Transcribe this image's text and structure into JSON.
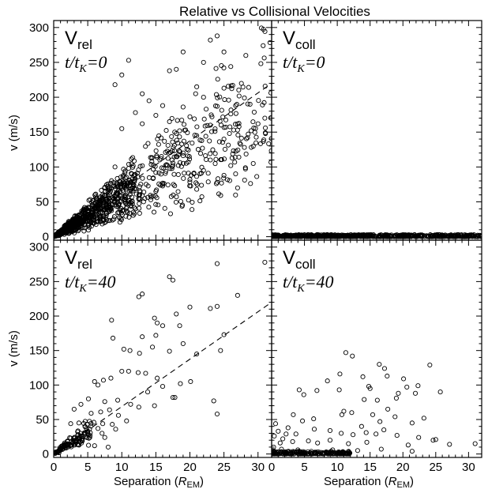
{
  "chart_data": {
    "type": "scatter",
    "title": "Relative vs Collisional Velocities",
    "xlabel": "Separation (",
    "xlabel_symbol": "R",
    "xlabel_subscript": "EM",
    "xlabel_close": ")",
    "ylabel": "v (m/s)",
    "xlim": [
      0,
      32
    ],
    "ylim": [
      -5,
      310
    ],
    "x_ticks": [
      "0",
      "5",
      "10",
      "15",
      "20",
      "25",
      "30"
    ],
    "y_ticks": [
      "0",
      "50",
      "100",
      "150",
      "200",
      "250",
      "300"
    ],
    "grid": false,
    "marker": "open-circle",
    "reference_line": {
      "style": "dashed",
      "x": [
        0,
        32
      ],
      "y": [
        0,
        220
      ]
    },
    "panels": [
      {
        "id": "top-left",
        "label_main": "V",
        "label_sub": "rel",
        "time_t": "t/t",
        "time_sub": "K",
        "time_value": "=0",
        "series": {
          "name": "",
          "points": [
            [
              11,
              253
            ],
            [
              23,
              282
            ],
            [
              24,
              288
            ],
            [
              25,
              265
            ],
            [
              19,
              265
            ],
            [
              22,
              250
            ],
            [
              26,
              244
            ],
            [
              10,
              232
            ],
            [
              17,
              238
            ],
            [
              18,
              240
            ],
            [
              9,
              218
            ],
            [
              21,
              215
            ],
            [
              13,
              205
            ],
            [
              25,
              213
            ],
            [
              16,
              188
            ],
            [
              22,
              200
            ],
            [
              28,
              199
            ],
            [
              14,
              195
            ],
            [
              19,
              186
            ],
            [
              24,
              187
            ],
            [
              12,
              178
            ],
            [
              15,
              174
            ],
            [
              20,
              172
            ],
            [
              26,
              176
            ],
            [
              31,
              170
            ],
            [
              13,
              162
            ],
            [
              17,
              165
            ],
            [
              23,
              160
            ],
            [
              27,
              153
            ],
            [
              29,
              152
            ],
            [
              18,
              148
            ],
            [
              21,
              145
            ],
            [
              25,
              140
            ],
            [
              28,
              128
            ],
            [
              10,
              155
            ],
            [
              30,
              162
            ],
            [
              22,
              95
            ],
            [
              25,
              88
            ],
            [
              24,
              78
            ],
            [
              27,
              70
            ],
            [
              26,
              102
            ],
            [
              20,
              82
            ],
            [
              21,
              68
            ],
            [
              11,
              98
            ],
            [
              9,
              100
            ],
            [
              23,
              110
            ],
            [
              19,
              120
            ],
            [
              16,
              75
            ],
            [
              15,
              65
            ],
            [
              12,
              40
            ]
          ]
        },
        "cloud": {
          "count": 1650,
          "xmax": 32,
          "slope": 6.0
        }
      },
      {
        "id": "top-right",
        "label_main": "V",
        "label_sub": "coll",
        "time_t": "t/t",
        "time_sub": "K",
        "time_value": "=0",
        "series": {
          "name": "",
          "points": [
            [
              4,
              2
            ],
            [
              7,
              3
            ],
            [
              11,
              2
            ],
            [
              14,
              3
            ],
            [
              18,
              2
            ],
            [
              20,
              3
            ],
            [
              23,
              2
            ],
            [
              25,
              2
            ]
          ]
        },
        "cloud": {
          "count": 650,
          "xmax": 32,
          "vmax": 3
        }
      },
      {
        "id": "bottom-left",
        "label_main": "V",
        "label_sub": "rel",
        "time_t": "t/t",
        "time_sub": "K",
        "time_value": "=40",
        "series": {
          "name": "",
          "points": [
            [
              31,
              278
            ],
            [
              24,
              276
            ],
            [
              17,
              257
            ],
            [
              17.5,
              252
            ],
            [
              13,
              232
            ],
            [
              12.5,
              228
            ],
            [
              27,
              230
            ],
            [
              8.5,
              194
            ],
            [
              14.8,
              197
            ],
            [
              15.2,
              190
            ],
            [
              18,
              203
            ],
            [
              16,
              186
            ],
            [
              18.5,
              186
            ],
            [
              20,
              213
            ],
            [
              23,
              211
            ],
            [
              24,
              214
            ],
            [
              25,
              173
            ],
            [
              13,
              170
            ],
            [
              15,
              172
            ],
            [
              8.7,
              168
            ],
            [
              10.3,
              152
            ],
            [
              11.2,
              150
            ],
            [
              12.6,
              146
            ],
            [
              14.5,
              155
            ],
            [
              17,
              149
            ],
            [
              19,
              160
            ],
            [
              21,
              145
            ],
            [
              24.5,
              150
            ],
            [
              6,
              105
            ],
            [
              6.5,
              100
            ],
            [
              7.3,
              107
            ],
            [
              8.4,
              110
            ],
            [
              10,
              120
            ],
            [
              11,
              120
            ],
            [
              12.4,
              118
            ],
            [
              13.5,
              117
            ],
            [
              15.2,
              110
            ],
            [
              16,
              98
            ],
            [
              18.6,
              102
            ],
            [
              20.1,
              105
            ],
            [
              5.1,
              80
            ],
            [
              7.5,
              76
            ],
            [
              9.4,
              78
            ],
            [
              11.3,
              72
            ],
            [
              13.8,
              90
            ],
            [
              17.5,
              82
            ],
            [
              4,
              72
            ],
            [
              3,
              65
            ],
            [
              5.5,
              59
            ],
            [
              6.9,
              61
            ],
            [
              8.2,
              64
            ],
            [
              9.5,
              56
            ],
            [
              10.7,
              48
            ],
            [
              12.5,
              68
            ],
            [
              14.8,
              70
            ],
            [
              17.8,
              82
            ],
            [
              2.5,
              44
            ],
            [
              3.7,
              45
            ],
            [
              4.8,
              37
            ],
            [
              5.9,
              46
            ],
            [
              6.5,
              37
            ],
            [
              7.2,
              44
            ],
            [
              8.6,
              43
            ],
            [
              9.1,
              36
            ],
            [
              23.5,
              77
            ],
            [
              24,
              58
            ],
            [
              2.5,
              23
            ],
            [
              3.6,
              28
            ],
            [
              4.2,
              19
            ],
            [
              5.3,
              24
            ],
            [
              7.1,
              30
            ],
            [
              7.5,
              24
            ],
            [
              6,
              12
            ],
            [
              1.6,
              16
            ],
            [
              0.6,
              3
            ],
            [
              8,
              10
            ]
          ]
        },
        "cloud": {
          "count": 110,
          "xmax": 5.5,
          "slope": 6.5
        }
      },
      {
        "id": "bottom-right",
        "label_main": "V",
        "label_sub": "coll",
        "time_t": "t/t",
        "time_sub": "K",
        "time_value": "=40",
        "series": {
          "name": "",
          "points": [
            [
              11.3,
              147
            ],
            [
              12.3,
              142
            ],
            [
              16.4,
              130
            ],
            [
              17.6,
              113
            ],
            [
              17.2,
              124
            ],
            [
              24.1,
              129
            ],
            [
              10.4,
              116
            ],
            [
              13.9,
              112
            ],
            [
              20.1,
              109
            ],
            [
              20.6,
              97
            ],
            [
              14.8,
              98
            ],
            [
              15,
              95
            ],
            [
              8.5,
              106
            ],
            [
              22.3,
              99
            ],
            [
              4.2,
              93
            ],
            [
              4.9,
              86
            ],
            [
              6.9,
              92
            ],
            [
              10.3,
              93
            ],
            [
              14.1,
              79
            ],
            [
              16.1,
              78
            ],
            [
              19.3,
              88
            ],
            [
              21.9,
              88
            ],
            [
              25.7,
              90
            ],
            [
              19,
              81
            ],
            [
              17.7,
              65
            ],
            [
              15.4,
              57
            ],
            [
              11,
              62
            ],
            [
              2.5,
              38
            ],
            [
              3.3,
              57
            ],
            [
              4.7,
              48
            ],
            [
              6.4,
              51
            ],
            [
              10.7,
              57
            ],
            [
              12.2,
              60
            ],
            [
              13.7,
              40
            ],
            [
              16.5,
              47
            ],
            [
              18.8,
              54
            ],
            [
              21.4,
              45
            ],
            [
              23.2,
              52
            ],
            [
              2.2,
              29
            ],
            [
              3.7,
              29
            ],
            [
              6.5,
              36
            ],
            [
              8.9,
              34
            ],
            [
              10.6,
              30
            ],
            [
              12.4,
              28
            ],
            [
              14.4,
              31
            ],
            [
              15.9,
              29
            ],
            [
              17.1,
              35
            ],
            [
              19.1,
              27
            ],
            [
              22.4,
              24
            ],
            [
              25,
              21
            ],
            [
              1.7,
              22
            ],
            [
              3.2,
              18
            ],
            [
              5.6,
              19
            ],
            [
              7,
              16
            ],
            [
              8.9,
              20
            ],
            [
              11.7,
              15
            ],
            [
              14.5,
              17
            ],
            [
              20.8,
              13
            ],
            [
              24.6,
              20
            ],
            [
              27.1,
              14
            ],
            [
              31,
              15
            ],
            [
              1.5,
              7
            ],
            [
              4,
              6
            ],
            [
              9.3,
              6
            ],
            [
              13.1,
              5
            ],
            [
              16.7,
              7
            ],
            [
              21.4,
              4
            ],
            [
              0.3,
              10
            ],
            [
              0.6,
              44
            ],
            [
              1,
              33
            ],
            [
              1.3,
              16
            ],
            [
              0.4,
              26
            ],
            [
              0.2,
              5
            ],
            [
              0.9,
              3
            ]
          ]
        },
        "cloud": {
          "count": 180,
          "xmax": 12,
          "vmax": 4
        }
      }
    ]
  }
}
